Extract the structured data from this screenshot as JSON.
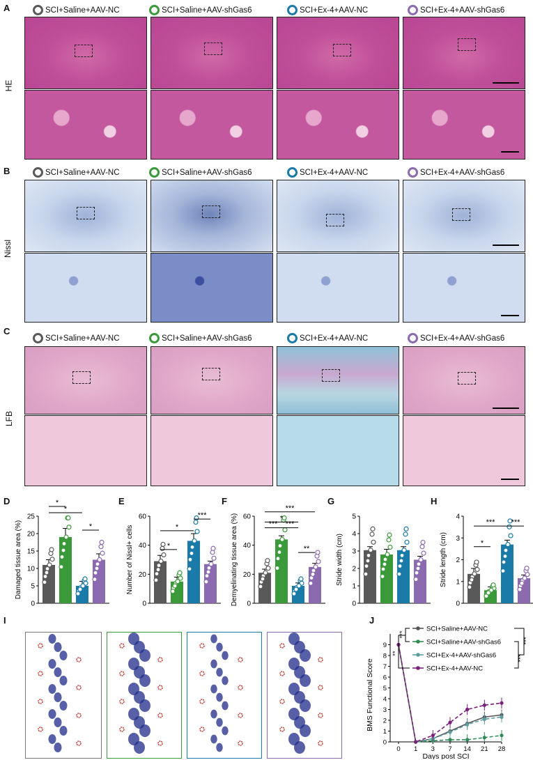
{
  "panel_letters": {
    "a": "A",
    "b": "B",
    "c": "C",
    "d": "D",
    "e": "E",
    "f": "F",
    "g": "G",
    "h": "H",
    "i": "I",
    "j": "J"
  },
  "groups": [
    {
      "label": "SCI+Saline+AAV-NC",
      "color": "#595959"
    },
    {
      "label": "SCI+Saline+AAV-shGas6",
      "color": "#3a9a3a"
    },
    {
      "label": "SCI+Ex-4+AAV-NC",
      "color": "#1a7aa8"
    },
    {
      "label": "SCI+Ex-4+AAV-shGas6",
      "color": "#8b6ab0"
    }
  ],
  "stains": {
    "he": "HE",
    "nissl": "Nissl",
    "lfb": "LFB"
  },
  "chart_data": [
    {
      "type": "bar",
      "panel": "D",
      "ylabel": "Damaged tissue area (%)",
      "ylim": [
        0,
        25
      ],
      "yticks": [
        0,
        5,
        10,
        15,
        20,
        25
      ],
      "values": [
        11,
        19,
        5,
        12.5
      ],
      "errors": [
        1.5,
        2.5,
        1.3,
        1.7
      ],
      "sig": [
        {
          "text": "*",
          "from": 0,
          "to": 1,
          "y": 29
        },
        {
          "text": "*",
          "from": 0,
          "to": 2,
          "y": 26
        },
        {
          "text": "*",
          "from": 2,
          "to": 3,
          "y": 21
        }
      ]
    },
    {
      "type": "bar",
      "panel": "E",
      "ylabel": "Number of Nissl+ cells",
      "ylim": [
        0,
        60
      ],
      "yticks": [
        0,
        20,
        40,
        60
      ],
      "values": [
        29,
        15,
        43,
        27
      ],
      "errors": [
        4,
        3,
        5,
        2
      ],
      "sig": [
        {
          "text": "*",
          "from": 0,
          "to": 1,
          "y": 37
        },
        {
          "text": "*",
          "from": 0,
          "to": 2,
          "y": 50
        },
        {
          "text": "***",
          "from": 2,
          "to": 3,
          "y": 58
        }
      ]
    },
    {
      "type": "bar",
      "panel": "F",
      "ylabel": "Demyelinating tissue area (%)",
      "ylim": [
        0,
        60
      ],
      "yticks": [
        0,
        20,
        40,
        60
      ],
      "values": [
        21,
        44,
        12,
        25
      ],
      "errors": [
        2.5,
        2.5,
        2,
        2.5
      ],
      "sig": [
        {
          "text": "***",
          "from": 0,
          "to": 3,
          "y": 63
        },
        {
          "text": "*",
          "from": 0,
          "to": 2,
          "y": 56
        },
        {
          "text": "***",
          "from": 0,
          "to": 1,
          "y": 52
        },
        {
          "text": "***",
          "from": 1,
          "to": 2,
          "y": 52
        },
        {
          "text": "**",
          "from": 2,
          "to": 3,
          "y": 35
        }
      ]
    },
    {
      "type": "bar",
      "panel": "G",
      "ylabel": "Stride width (cm)",
      "ylim": [
        0,
        5
      ],
      "yticks": [
        0,
        1,
        2,
        3,
        4,
        5
      ],
      "values": [
        3.05,
        2.8,
        3.05,
        2.5
      ],
      "errors": [
        0.2,
        0.3,
        0.2,
        0.2
      ],
      "sig": []
    },
    {
      "type": "bar",
      "panel": "H",
      "ylabel": "Stride length (cm)",
      "ylim": [
        0,
        4
      ],
      "yticks": [
        0,
        1,
        2,
        3,
        4
      ],
      "values": [
        1.35,
        0.6,
        2.7,
        1.15
      ],
      "errors": [
        0.25,
        0.15,
        0.2,
        0.15
      ],
      "sig": [
        {
          "text": "*",
          "from": 0,
          "to": 1,
          "y": 2.6
        },
        {
          "text": "***",
          "from": 0,
          "to": 2,
          "y": 3.55
        },
        {
          "text": "***",
          "from": 2,
          "to": 3,
          "y": 3.55
        }
      ]
    },
    {
      "type": "line",
      "panel": "J",
      "xlabel": "Days post SCI",
      "ylabel": "BMS Functional Score",
      "x": [
        0,
        1,
        3,
        7,
        14,
        21,
        28
      ],
      "ylim": [
        0,
        10
      ],
      "yticks": [
        0,
        1,
        2,
        3,
        4,
        5,
        6,
        7,
        8,
        9
      ],
      "series": [
        {
          "name": "SCI+Saline+AAV-NC",
          "color": "#555555",
          "values": [
            9,
            0,
            0.3,
            1.0,
            1.7,
            2.3,
            2.5
          ]
        },
        {
          "name": "SCI+Saline+AAV-shGas6",
          "color": "#2e8b57",
          "values": [
            9,
            0,
            0.1,
            0.2,
            0.2,
            0.4,
            0.6
          ]
        },
        {
          "name": "SCI+Ex-4+AAV-shGas6",
          "color": "#5f9ea0",
          "values": [
            9,
            0,
            0.3,
            0.9,
            1.6,
            2.1,
            2.3
          ]
        },
        {
          "name": "SCI+Ex-4+AAV-NC",
          "color": "#7a1f7a",
          "values": [
            9,
            0,
            0.6,
            1.8,
            3.0,
            3.4,
            3.6
          ]
        }
      ],
      "sig": [
        "**",
        "***",
        "***",
        "***"
      ]
    }
  ]
}
